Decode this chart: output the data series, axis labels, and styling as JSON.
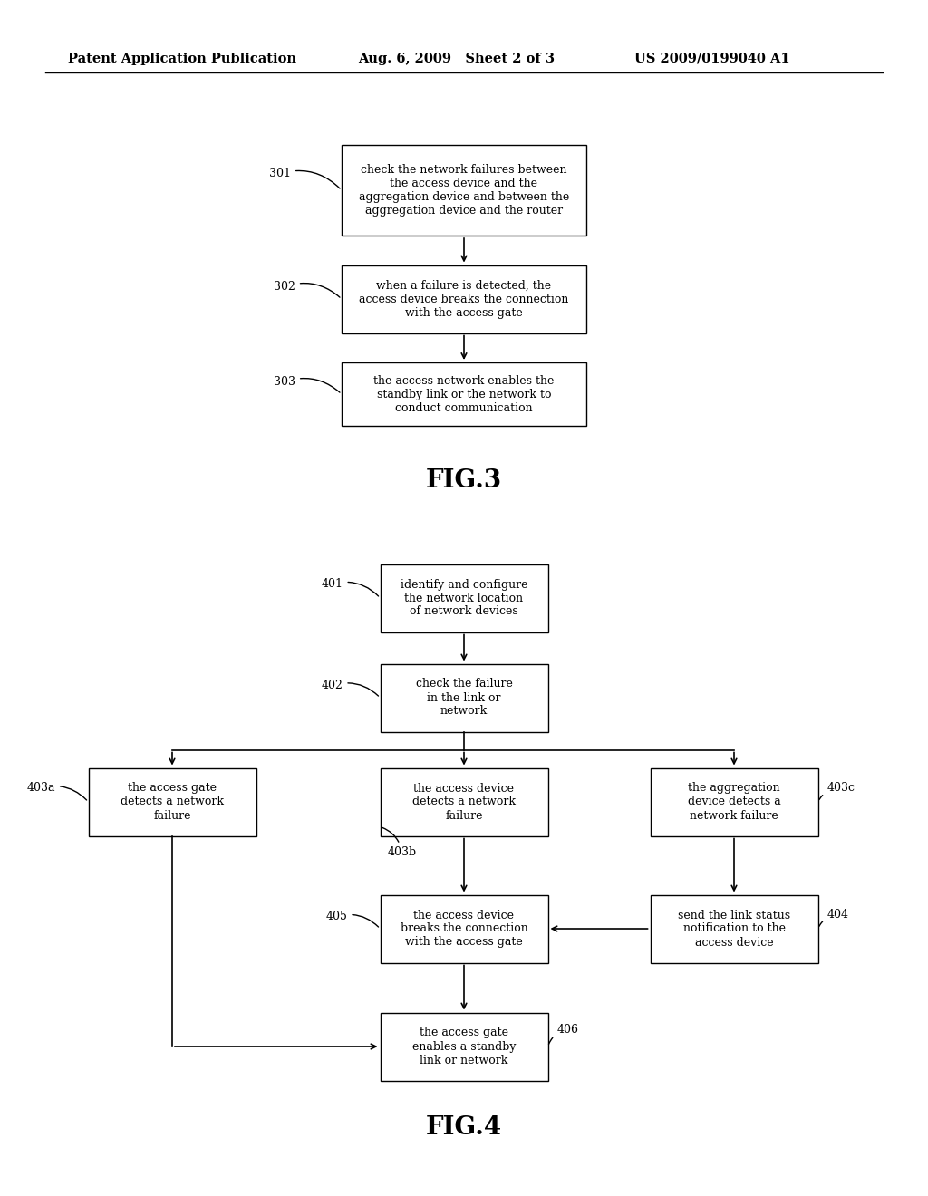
{
  "background_color": "#ffffff",
  "header_left": "Patent Application Publication",
  "header_mid": "Aug. 6, 2009   Sheet 2 of 3",
  "header_right": "US 2009/0199040 A1",
  "fig3_title": "FIG.3",
  "fig4_title": "FIG.4",
  "fig3": {
    "box301_text": "check the network failures between\nthe access device and the\naggregation device and between the\naggregation device and the router",
    "box302_text": "when a failure is detected, the\naccess device breaks the connection\nwith the access gate",
    "box303_text": "the access network enables the\nstandby link or the network to\nconduct communication"
  },
  "fig4": {
    "box401_text": "identify and configure\nthe network location\nof network devices",
    "box402_text": "check the failure\nin the link or\nnetwork",
    "box403a_text": "the access gate\ndetects a network\nfailure",
    "box403b_text": "the access device\ndetects a network\nfailure",
    "box403c_text": "the aggregation\ndevice detects a\nnetwork failure",
    "box405_text": "the access device\nbreaks the connection\nwith the access gate",
    "box404_text": "send the link status\nnotification to the\naccess device",
    "box406_text": "the access gate\nenables a standby\nlink or network"
  }
}
